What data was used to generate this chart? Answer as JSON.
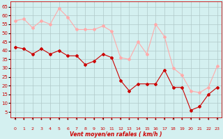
{
  "x": [
    0,
    1,
    2,
    3,
    4,
    5,
    6,
    7,
    8,
    9,
    10,
    11,
    12,
    13,
    14,
    15,
    16,
    17,
    18,
    19,
    20,
    21,
    22,
    23
  ],
  "wind_avg": [
    42,
    41,
    38,
    41,
    38,
    40,
    37,
    37,
    32,
    34,
    38,
    36,
    23,
    17,
    21,
    21,
    21,
    29,
    19,
    19,
    6,
    8,
    15,
    19
  ],
  "wind_gust": [
    57,
    58,
    53,
    57,
    55,
    64,
    59,
    52,
    52,
    52,
    54,
    51,
    36,
    35,
    45,
    38,
    55,
    48,
    30,
    26,
    17,
    16,
    19,
    31
  ],
  "bg_color": "#d4f0f0",
  "avg_color": "#cc0000",
  "gust_color": "#ffaaaa",
  "grid_color": "#b0c8c8",
  "xlabel": "Vent moyen/en rafales ( km/h )",
  "yticks": [
    5,
    10,
    15,
    20,
    25,
    30,
    35,
    40,
    45,
    50,
    55,
    60,
    65
  ],
  "ylim": [
    2,
    68
  ],
  "xlim": [
    -0.5,
    23.5
  ]
}
